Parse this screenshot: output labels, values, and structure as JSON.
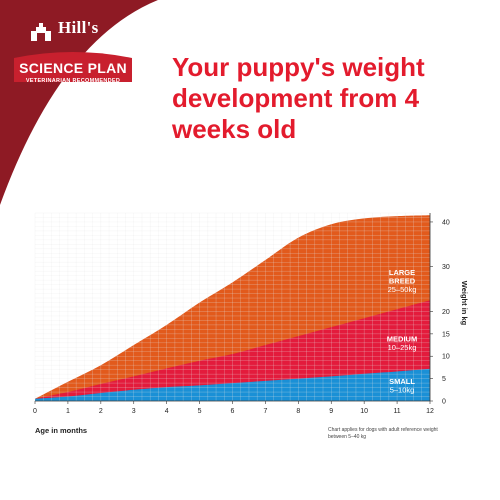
{
  "brand": {
    "name_top": "Hill's",
    "name_main": "SCIENCE PLAN",
    "tagline": "VETERINARIAN RECOMMENDED",
    "colors": {
      "dark_red": "#8e1a24",
      "red": "#c8202e"
    }
  },
  "headline": "Your puppy's weight development from 4 weeks old",
  "chart_data": {
    "type": "area",
    "title": "Your puppy's weight development from 4 weeks old",
    "xlabel": "Age in months",
    "ylabel": "Weight in kg",
    "xlim": [
      0,
      12
    ],
    "ylim": [
      0,
      42
    ],
    "x_ticks": [
      0,
      1,
      2,
      3,
      4,
      5,
      6,
      7,
      8,
      9,
      10,
      11,
      12
    ],
    "y_ticks": [
      0,
      5,
      10,
      15,
      20,
      30,
      40
    ],
    "grid": true,
    "note": "Chart applies for dogs with adult reference weight between 5–40 kg",
    "x": [
      0,
      1,
      2,
      3,
      4,
      5,
      6,
      7,
      8,
      9,
      10,
      11,
      12
    ],
    "series": [
      {
        "label_lines": [
          "SMALL",
          "5–10kg"
        ],
        "color": "#1a90d6",
        "label_color": "#ffffff",
        "values": [
          0.5,
          1.0,
          1.8,
          2.5,
          3.1,
          3.5,
          4.0,
          4.5,
          5.0,
          5.5,
          6.1,
          6.6,
          7.2
        ]
      },
      {
        "label_lines": [
          "MEDIUM",
          "10–25kg"
        ],
        "color": "#e31b3c",
        "label_color": "#ffffff",
        "values": [
          0.5,
          2.0,
          3.8,
          5.5,
          7.3,
          9.0,
          10.5,
          12.5,
          14.5,
          16.5,
          18.5,
          20.5,
          22.5
        ]
      },
      {
        "label_lines": [
          "LARGE",
          "BREED",
          "25–50kg"
        ],
        "color": "#e25a1c",
        "label_color": "#ffffff",
        "values": [
          0.5,
          4.3,
          8.0,
          12.5,
          17.0,
          22.0,
          26.5,
          31.5,
          36.5,
          39.5,
          40.8,
          41.3,
          41.5
        ]
      }
    ]
  }
}
